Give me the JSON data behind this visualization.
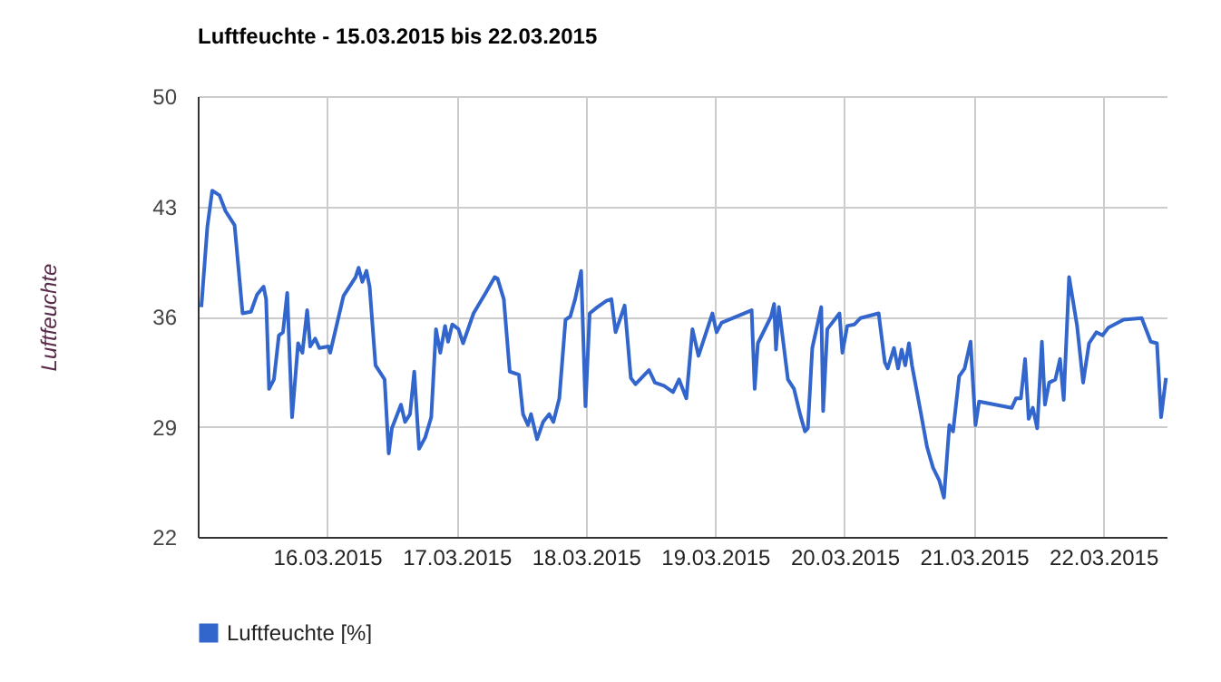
{
  "chart_data": {
    "type": "line",
    "title": "Luftfeuchte - 15.03.2015 bis 22.03.2015",
    "ylabel": "Luftfeuchte",
    "x": [
      "2015-03-15T00:40",
      "2015-03-15T01:47",
      "2015-03-15T02:41",
      "2015-03-15T04:02",
      "2015-03-15T05:09",
      "2015-03-15T06:50",
      "2015-03-15T08:19",
      "2015-03-15T09:52",
      "2015-03-15T11:01",
      "2015-03-15T12:13",
      "2015-03-15T12:41",
      "2015-03-15T13:14",
      "2015-03-15T14:08",
      "2015-03-15T15:03",
      "2015-03-15T15:49",
      "2015-03-15T16:36",
      "2015-03-15T17:30",
      "2015-03-15T18:37",
      "2015-03-15T19:25",
      "2015-03-15T20:18",
      "2015-03-15T20:52",
      "2015-03-15T21:47",
      "2015-03-15T22:33",
      "2015-03-16T00:14",
      "2015-03-16T00:34",
      "2015-03-16T03:02",
      "2015-03-16T05:17",
      "2015-03-16T05:51",
      "2015-03-16T06:32",
      "2015-03-16T07:18",
      "2015-03-16T07:53",
      "2015-03-16T08:59",
      "2015-03-16T10:40",
      "2015-03-16T11:26",
      "2015-03-16T12:01",
      "2015-03-16T13:42",
      "2015-03-16T14:28",
      "2015-03-16T15:23",
      "2015-03-16T16:10",
      "2015-03-16T17:04",
      "2015-03-16T18:11",
      "2015-03-16T19:19",
      "2015-03-16T20:12",
      "2015-03-16T21:00",
      "2015-03-16T21:53",
      "2015-03-16T22:27",
      "2015-03-16T23:13",
      "2015-03-17T00:22",
      "2015-03-17T01:14",
      "2015-03-17T03:10",
      "2015-03-17T05:25",
      "2015-03-17T07:06",
      "2015-03-17T07:38",
      "2015-03-17T08:47",
      "2015-03-17T09:53",
      "2015-03-17T11:35",
      "2015-03-17T12:21",
      "2015-03-17T13:16",
      "2015-03-17T13:50",
      "2015-03-17T14:57",
      "2015-03-17T16:04",
      "2015-03-17T17:12",
      "2015-03-17T17:59",
      "2015-03-17T19:05",
      "2015-03-17T20:14",
      "2015-03-17T21:07",
      "2015-03-17T22:01",
      "2015-03-17T23:08",
      "2015-03-17T23:56",
      "2015-03-18T00:43",
      "2015-03-18T02:09",
      "2015-03-18T03:50",
      "2015-03-18T04:45",
      "2015-03-18T05:31",
      "2015-03-18T07:12",
      "2015-03-18T08:21",
      "2015-03-18T09:13",
      "2015-03-18T11:43",
      "2015-03-18T12:49",
      "2015-03-18T14:31",
      "2015-03-18T16:11",
      "2015-03-18T17:18",
      "2015-03-18T18:39",
      "2015-03-18T19:47",
      "2015-03-18T20:54",
      "2015-03-18T23:29",
      "2015-03-19T00:16",
      "2015-03-19T01:11",
      "2015-03-19T06:46",
      "2015-03-19T07:20",
      "2015-03-19T07:55",
      "2015-03-19T10:22",
      "2015-03-19T10:56",
      "2015-03-19T11:17",
      "2015-03-19T11:49",
      "2015-03-19T13:30",
      "2015-03-19T14:38",
      "2015-03-19T15:45",
      "2015-03-19T16:40",
      "2015-03-19T17:12",
      "2015-03-19T18:01",
      "2015-03-19T18:47",
      "2015-03-19T19:41",
      "2015-03-19T20:02",
      "2015-03-19T20:48",
      "2015-03-19T23:04",
      "2015-03-19T23:36",
      "2015-03-20T00:30",
      "2015-03-20T01:51",
      "2015-03-20T02:58",
      "2015-03-20T06:20",
      "2015-03-20T07:28",
      "2015-03-20T08:01",
      "2015-03-20T09:10",
      "2015-03-20T09:56",
      "2015-03-20T10:36",
      "2015-03-20T11:16",
      "2015-03-20T11:57",
      "2015-03-20T12:31",
      "2015-03-20T14:12",
      "2015-03-20T15:19",
      "2015-03-20T16:25",
      "2015-03-20T17:34",
      "2015-03-20T18:27",
      "2015-03-20T19:27",
      "2015-03-20T20:08",
      "2015-03-20T21:16",
      "2015-03-20T22:17",
      "2015-03-20T23:23",
      "2015-03-21T00:18",
      "2015-03-21T00:58",
      "2015-03-21T07:02",
      "2015-03-21T07:49",
      "2015-03-21T08:43",
      "2015-03-21T09:30",
      "2015-03-21T10:10",
      "2015-03-21T10:56",
      "2015-03-21T11:45",
      "2015-03-21T12:37",
      "2015-03-21T13:11",
      "2015-03-21T13:58",
      "2015-03-21T15:07",
      "2015-03-21T15:59",
      "2015-03-21T16:40",
      "2015-03-21T17:40",
      "2015-03-21T19:09",
      "2015-03-21T20:16",
      "2015-03-21T21:22",
      "2015-03-21T22:43",
      "2015-03-21T23:52",
      "2015-03-22T00:58",
      "2015-03-22T03:46",
      "2015-03-22T07:08",
      "2015-03-22T08:49",
      "2015-03-22T09:58",
      "2015-03-22T10:44",
      "2015-03-22T11:38"
    ],
    "series": [
      {
        "name": "Luftfeuchte [%]",
        "color": "#3366cc",
        "values": [
          36.6,
          41.7,
          44.0,
          43.7,
          42.7,
          41.8,
          36.2,
          36.3,
          37.4,
          37.9,
          37.1,
          31.4,
          32.0,
          34.8,
          35.0,
          37.5,
          29.6,
          34.3,
          33.7,
          36.4,
          34.1,
          34.6,
          34.0,
          34.1,
          33.7,
          37.3,
          38.5,
          39.1,
          38.2,
          38.9,
          37.9,
          32.9,
          32.0,
          27.3,
          28.9,
          30.4,
          29.3,
          29.8,
          32.5,
          27.6,
          28.3,
          29.6,
          35.2,
          33.7,
          35.4,
          34.4,
          35.5,
          35.2,
          34.3,
          36.2,
          37.5,
          38.5,
          38.4,
          37.1,
          32.5,
          32.3,
          29.8,
          29.1,
          29.8,
          28.2,
          29.3,
          29.8,
          29.3,
          30.8,
          35.8,
          36.0,
          37.1,
          38.9,
          30.3,
          36.2,
          36.6,
          37.0,
          37.1,
          35.0,
          36.7,
          32.1,
          31.7,
          32.6,
          31.8,
          31.6,
          31.2,
          32.0,
          30.8,
          35.2,
          33.5,
          36.2,
          35.0,
          35.6,
          36.4,
          31.4,
          34.3,
          36.0,
          36.8,
          33.9,
          36.6,
          32.0,
          31.4,
          29.8,
          28.7,
          28.9,
          34.0,
          35.2,
          36.6,
          30.0,
          35.2,
          36.2,
          33.7,
          35.4,
          35.5,
          35.9,
          36.2,
          33.1,
          32.7,
          34.0,
          32.7,
          33.9,
          32.9,
          34.3,
          32.9,
          29.8,
          27.7,
          26.4,
          25.6,
          24.5,
          29.1,
          28.7,
          32.2,
          32.7,
          34.4,
          29.1,
          30.6,
          30.2,
          30.8,
          30.8,
          33.3,
          29.5,
          30.2,
          28.9,
          34.4,
          30.4,
          31.8,
          32.0,
          33.3,
          30.7,
          38.5,
          35.4,
          31.8,
          34.3,
          35.0,
          34.8,
          35.3,
          35.8,
          35.9,
          34.4,
          34.3,
          29.6,
          32.1
        ]
      }
    ],
    "xlim": [
      "2015-03-15T00:00",
      "2015-03-22T11:45"
    ],
    "xticks": [
      {
        "value": "2015-03-16T00:00",
        "label": "16.03.2015"
      },
      {
        "value": "2015-03-17T00:00",
        "label": "17.03.2015"
      },
      {
        "value": "2015-03-18T00:00",
        "label": "18.03.2015"
      },
      {
        "value": "2015-03-19T00:00",
        "label": "19.03.2015"
      },
      {
        "value": "2015-03-20T00:00",
        "label": "20.03.2015"
      },
      {
        "value": "2015-03-21T00:00",
        "label": "21.03.2015"
      },
      {
        "value": "2015-03-22T00:00",
        "label": "22.03.2015"
      }
    ],
    "ylim": [
      22,
      50
    ],
    "yticks": [
      22,
      29,
      36,
      43,
      50
    ],
    "grid": true,
    "legend": "bottom",
    "marker": "none",
    "line_style": "solid"
  }
}
